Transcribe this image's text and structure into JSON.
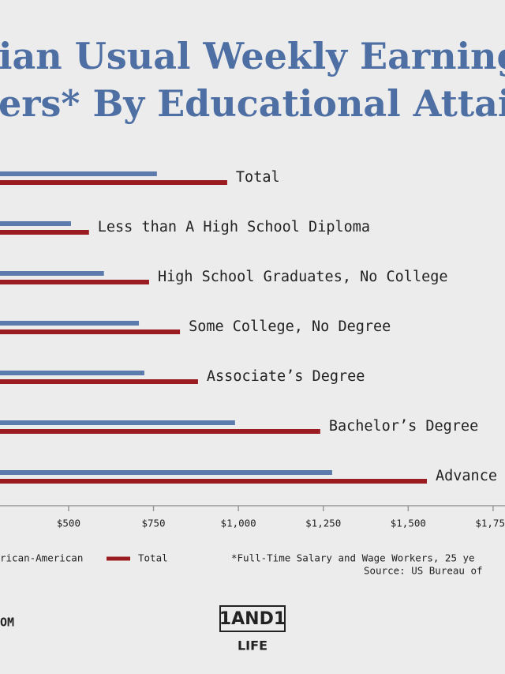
{
  "chart_data": {
    "type": "barh",
    "title_lines": [
      "ian Usual Weekly Earning",
      "ers* By Educational Attain"
    ],
    "categories": [
      "Total",
      "Less than A High School Diploma",
      "High School Graduates, No College",
      "Some College, No Degree",
      "Associate’s Degree",
      "Bachelor’s Degree",
      "Advance"
    ],
    "series": [
      {
        "name": "rican-American",
        "color": "#5a7bab",
        "values": [
          760,
          507,
          604,
          707,
          723,
          990,
          1276
        ]
      },
      {
        "name": "Total",
        "color": "#9b1c20",
        "values": [
          967,
          560,
          737,
          828,
          881,
          1241,
          1555
        ]
      }
    ],
    "xlim": [
      298,
      1785
    ],
    "xticks": [
      {
        "value": 500,
        "label": "$500"
      },
      {
        "value": 750,
        "label": "$750"
      },
      {
        "value": 1000,
        "label": "$1,000"
      },
      {
        "value": 1250,
        "label": "$1,250"
      },
      {
        "value": 1500,
        "label": "$1,500"
      },
      {
        "value": 1750,
        "label": "$1,750"
      }
    ],
    "notes": [
      "*Full-Time Salary and Wage Workers, 25 ye",
      "Source: US Bureau of"
    ],
    "footer_left": "OM",
    "logo": [
      "1AND1",
      "LIFE"
    ]
  }
}
